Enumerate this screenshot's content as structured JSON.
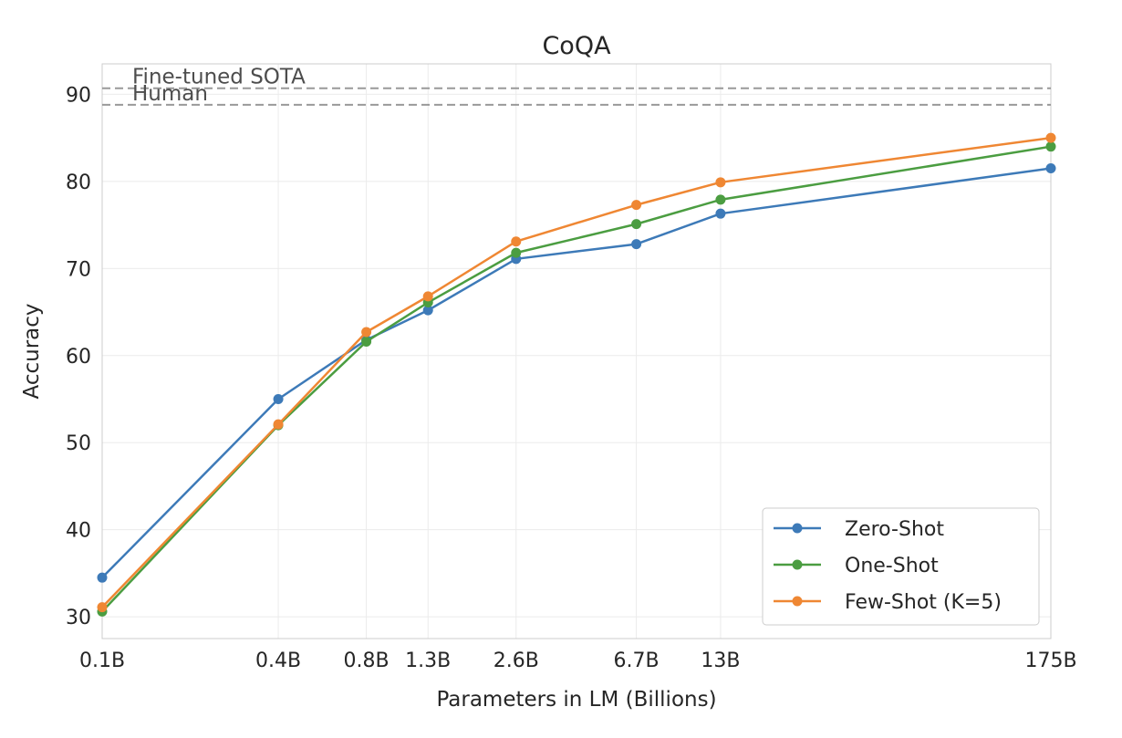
{
  "chart_data": {
    "type": "line",
    "title": "CoQA",
    "xlabel": "Parameters in LM (Billions)",
    "ylabel": "Accuracy",
    "x_scale": "log",
    "x": [
      0.1,
      0.4,
      0.8,
      1.3,
      2.6,
      6.7,
      13,
      175
    ],
    "x_tick_labels": [
      "0.1B",
      "0.4B",
      "0.8B",
      "1.3B",
      "2.6B",
      "6.7B",
      "13B",
      "175B"
    ],
    "y_ticks": [
      30,
      40,
      50,
      60,
      70,
      80,
      90
    ],
    "ylim": [
      27.5,
      93.5
    ],
    "grid": true,
    "legend_position": "lower-right",
    "series": [
      {
        "name": "Zero-Shot",
        "color": "#3d7ab8",
        "values": [
          34.5,
          55.0,
          61.8,
          65.2,
          71.1,
          72.8,
          76.3,
          81.5
        ]
      },
      {
        "name": "One-Shot",
        "color": "#4b9d41",
        "values": [
          30.6,
          52.0,
          61.6,
          66.1,
          71.8,
          75.1,
          77.9,
          84.0
        ]
      },
      {
        "name": "Few-Shot (K=5)",
        "color": "#ef8733",
        "values": [
          31.1,
          52.1,
          62.7,
          66.8,
          73.1,
          77.3,
          79.9,
          85.0
        ]
      }
    ],
    "reference_lines": [
      {
        "label": "Fine-tuned SOTA",
        "value": 90.7,
        "color": "#999999"
      },
      {
        "label": "Human",
        "value": 88.8,
        "color": "#999999"
      }
    ]
  }
}
